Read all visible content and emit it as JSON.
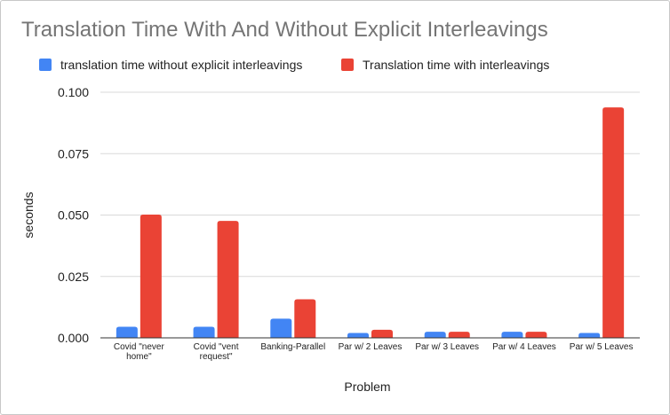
{
  "chart_data": {
    "type": "bar",
    "title": "Translation Time With And Without Explicit Interleavings",
    "xlabel": "Problem",
    "ylabel": "seconds",
    "ylim": [
      0,
      0.1
    ],
    "yticks": [
      "0.000",
      "0.025",
      "0.050",
      "0.075",
      "0.100"
    ],
    "ytick_values": [
      0,
      0.025,
      0.05,
      0.075,
      0.1
    ],
    "grid": true,
    "legend_position": "top-left",
    "categories": [
      [
        "Covid \"never",
        "home\""
      ],
      [
        "Covid \"vent",
        "request\""
      ],
      [
        "Banking-Parallel"
      ],
      [
        "Par w/ 2 Leaves"
      ],
      [
        "Par w/ 3 Leaves"
      ],
      [
        "Par w/ 4 Leaves"
      ],
      [
        "Par w/ 5 Leaves"
      ]
    ],
    "series": [
      {
        "name": "translation time without explicit interleavings",
        "color": "#4285f4",
        "values": [
          0.0045,
          0.0045,
          0.0078,
          0.002,
          0.0025,
          0.0025,
          0.002
        ]
      },
      {
        "name": "Translation time with interleavings",
        "color": "#ea4335",
        "values": [
          0.0502,
          0.0476,
          0.0157,
          0.0033,
          0.0025,
          0.0025,
          0.0938
        ]
      }
    ]
  }
}
